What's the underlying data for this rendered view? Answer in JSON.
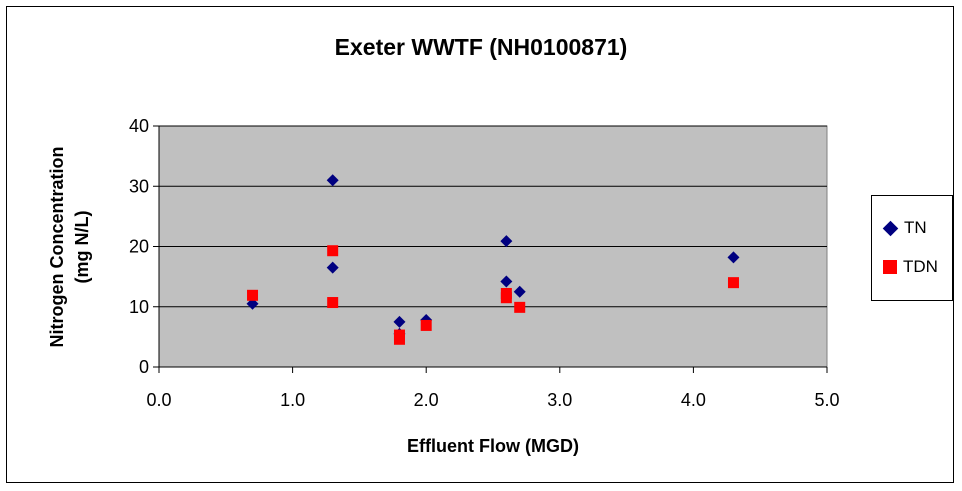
{
  "chart_data": {
    "type": "scatter",
    "title": "Exeter WWTF (NH0100871)",
    "xlabel": "Effluent Flow (MGD)",
    "ylabel_lines": [
      "Nitrogen Concentration",
      "(mg N/L)"
    ],
    "xlim": [
      0,
      5
    ],
    "ylim": [
      0,
      40
    ],
    "x_ticks": [
      "0.0",
      "1.0",
      "2.0",
      "3.0",
      "4.0",
      "5.0"
    ],
    "y_ticks": [
      "0",
      "10",
      "20",
      "30",
      "40"
    ],
    "grid": "horizontal",
    "plot_background": "#C0C0C0",
    "legend_position": "right",
    "series": [
      {
        "name": "TN",
        "marker": "diamond",
        "color": "#000080",
        "points": [
          [
            0.7,
            10.5
          ],
          [
            1.3,
            31.0
          ],
          [
            1.3,
            16.5
          ],
          [
            1.8,
            7.5
          ],
          [
            1.8,
            5.5
          ],
          [
            2.0,
            7.8
          ],
          [
            2.6,
            20.9
          ],
          [
            2.6,
            14.2
          ],
          [
            2.7,
            12.5
          ],
          [
            4.3,
            18.2
          ]
        ]
      },
      {
        "name": "TDN",
        "marker": "square",
        "color": "#FF0000",
        "points": [
          [
            0.7,
            11.9
          ],
          [
            1.3,
            19.3
          ],
          [
            1.3,
            10.7
          ],
          [
            1.8,
            5.3
          ],
          [
            1.8,
            4.6
          ],
          [
            2.0,
            6.9
          ],
          [
            2.6,
            12.2
          ],
          [
            2.6,
            11.5
          ],
          [
            2.7,
            9.9
          ],
          [
            4.3,
            14.0
          ]
        ]
      }
    ]
  }
}
